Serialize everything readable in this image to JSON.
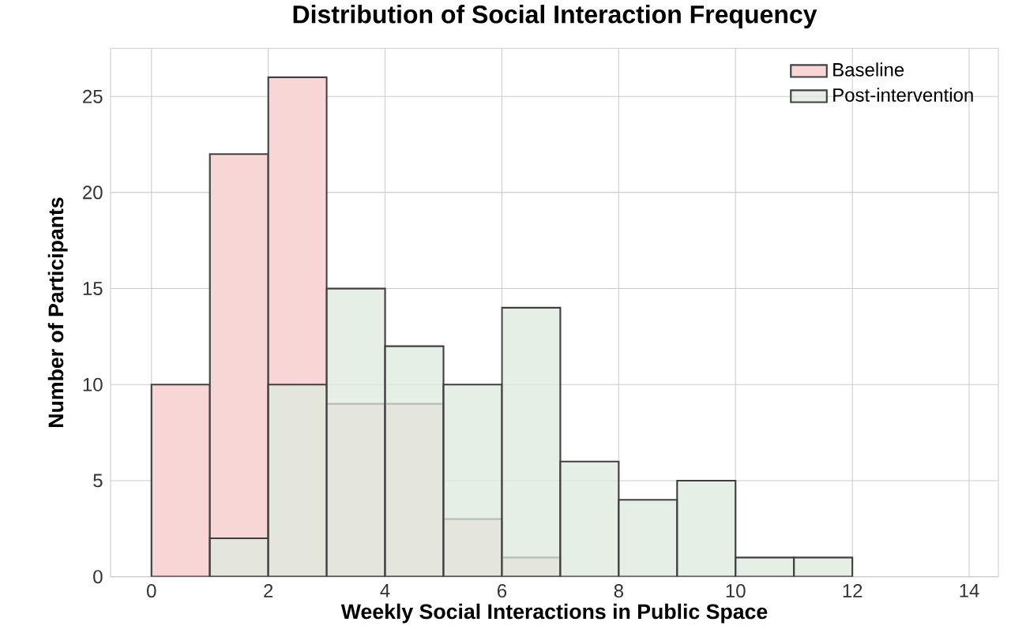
{
  "chart_data": {
    "type": "histogram",
    "title": "Distribution of Social Interaction Frequency",
    "xlabel": "Weekly Social Interactions in Public Space",
    "ylabel": "Number of Participants",
    "bins": [
      0,
      1,
      2,
      3,
      4,
      5,
      6,
      7,
      8,
      9,
      10,
      11,
      12
    ],
    "series": [
      {
        "name": "Baseline",
        "color": "#f9d6d6",
        "values": [
          10,
          22,
          26,
          9,
          9,
          3,
          1,
          0,
          0,
          0,
          0,
          0
        ]
      },
      {
        "name": "Post-intervention",
        "color": "#dce9dc",
        "values": [
          0,
          2,
          10,
          15,
          12,
          10,
          14,
          6,
          4,
          5,
          1,
          1
        ]
      }
    ],
    "xlim": [
      -0.7,
      14.5
    ],
    "xticks": [
      0,
      2,
      4,
      6,
      8,
      10,
      12,
      14
    ],
    "ylim": [
      0,
      27.5
    ],
    "yticks": [
      0,
      5,
      10,
      15,
      20,
      25
    ],
    "grid": true,
    "legend": "top right"
  }
}
